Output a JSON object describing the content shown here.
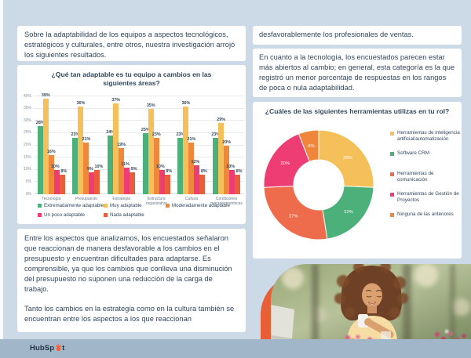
{
  "page": {
    "background_color": "#ccd9e6",
    "footer_color": "#a2b6c9",
    "accent_orange": "#e95f35",
    "text_color": "#33475b"
  },
  "left_column": {
    "intro_text": "Sobre la adaptabilidad de los equipos a aspectos tecnológicos, estratégicos y culturales, entre otros, nuestra investigación arrojó los siguientes resultados.",
    "analysis_p1": "Entre los aspectos que analizamos, los encuestados señalaron que reaccionan de manera desfavorable a los cambios en el presupuesto y encuentran dificultades para adaptarse. Es comprensible, ya que los cambios que conlleva una disminución del presupuesto no suponen una reducción de la carga de trabajo.",
    "analysis_p2": "Tanto los cambios en la estrategia como en la cultura también se encuentran entre los aspectos a los que reaccionan"
  },
  "right_column": {
    "continuation_text": "desfavorablemente los profesionales de ventas.",
    "technology_text": "En cuanto a la tecnología, los encuestados parecen estar más abiertos al cambio; en general, esta categoría es la que registró un menor porcentaje de respuestas en los rangos de poca o nula adaptabilidad."
  },
  "footer": {
    "logo_text": "HubSpot",
    "logo_part1": "HubSp",
    "logo_part2": "t",
    "sprocket_color": "#ff5c35"
  },
  "chart_data": [
    {
      "type": "bar",
      "title": "¿Qué tan adaptable es tu equipo a cambios en las siguientes áreas?",
      "categories": [
        "Tecnología",
        "Presupuesto",
        "Estrategia",
        "Estructura organizativa",
        "Cultura",
        "Condiciones macroeconómicas"
      ],
      "series": [
        {
          "name": "Extremadamente adaptable",
          "color": "#4cb07b",
          "values": [
            28,
            23,
            24,
            25,
            23,
            23
          ]
        },
        {
          "name": "Muy adaptable",
          "color": "#f5c05a",
          "values": [
            39,
            36,
            37,
            35,
            36,
            29
          ]
        },
        {
          "name": "Moderadamente adaptable",
          "color": "#f0883c",
          "values": [
            16,
            21,
            19,
            23,
            21,
            20
          ]
        },
        {
          "name": "Un poco adaptable",
          "color": "#ee3d74",
          "values": [
            10,
            9,
            11,
            10,
            12,
            10
          ]
        },
        {
          "name": "Nada adaptable",
          "color": "#e95d3a",
          "values": [
            8,
            10,
            9,
            8,
            8,
            8
          ]
        }
      ],
      "ylim": [
        0,
        40
      ],
      "ytick_step": 5,
      "unit": "%",
      "grid": true,
      "legend_position": "bottom"
    },
    {
      "type": "pie",
      "subtype": "donut",
      "title": "¿Cuáles de las siguientes herramientas utilizas en tu rol?",
      "slices": [
        {
          "label": "Herramientas de inteligencia artificial/automatización",
          "value": 26,
          "color": "#f5c05a"
        },
        {
          "label": "Software CRM",
          "value": 22,
          "color": "#4cb07b"
        },
        {
          "label": "Herramientas de comunicación",
          "value": 27,
          "color": "#ee6c4b"
        },
        {
          "label": "Herramientas de Gestión de Proyectos",
          "value": 20,
          "color": "#ee3d74"
        },
        {
          "label": "Ninguna de las anteriores",
          "value": 6,
          "color": "#f0863c"
        }
      ],
      "unit": "%",
      "legend_position": "right"
    }
  ]
}
